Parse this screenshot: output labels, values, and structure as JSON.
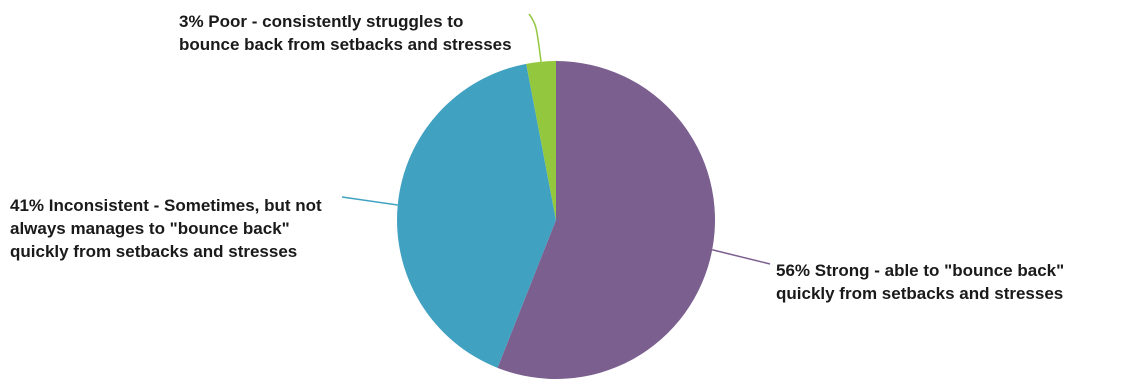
{
  "chart_data": {
    "type": "pie",
    "title": "",
    "slices": [
      {
        "label": "56% Strong - able to \"bounce back\" quickly from setbacks and stresses",
        "value": 56,
        "color": "#7b5f8f"
      },
      {
        "label": "41% Inconsistent - Sometimes, but not always manages to \"bounce back\" quickly from setbacks and stresses",
        "value": 41,
        "color": "#41a1c1"
      },
      {
        "label": "3% Poor - consistently struggles to bounce back from setbacks and stresses",
        "value": 3,
        "color": "#93c83e"
      }
    ],
    "start_angle_deg": 0,
    "direction": "clockwise",
    "legend": "none"
  }
}
